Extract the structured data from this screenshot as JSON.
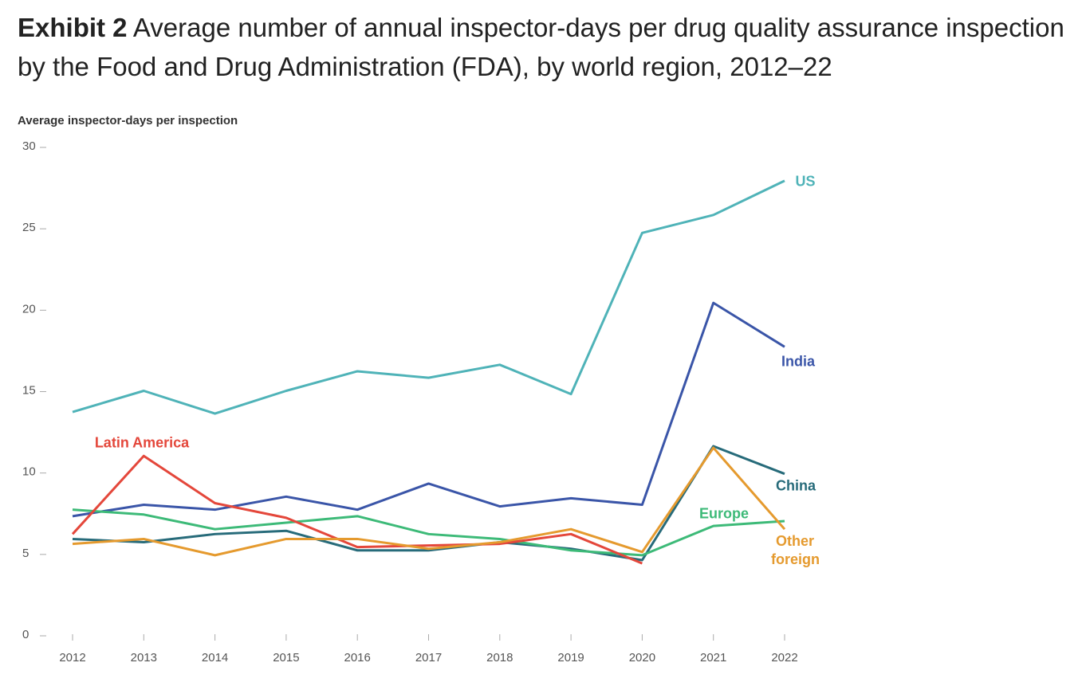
{
  "chart_data": {
    "type": "line",
    "exhibit": "Exhibit 2",
    "title": "Average number of annual inspector-days per drug quality assurance inspection by the Food and Drug Administration (FDA), by world region, 2012–22",
    "ylabel": "Average inspector-days per inspection",
    "x": [
      2012,
      2013,
      2014,
      2015,
      2016,
      2017,
      2018,
      2019,
      2020,
      2021,
      2022
    ],
    "xlim": [
      2012,
      2022
    ],
    "xticks": [
      2012,
      2013,
      2014,
      2015,
      2016,
      2017,
      2018,
      2019,
      2020,
      2021,
      2022
    ],
    "ylim": [
      0,
      30
    ],
    "yticks": [
      0,
      5,
      10,
      15,
      20,
      25,
      30
    ],
    "series": [
      {
        "name": "US",
        "color": "#4fb3b8",
        "values": [
          13.7,
          15.0,
          13.6,
          15.0,
          16.2,
          15.8,
          16.6,
          14.8,
          24.7,
          25.8,
          27.9
        ]
      },
      {
        "name": "India",
        "color": "#3a55a8",
        "values": [
          7.3,
          8.0,
          7.7,
          8.5,
          7.7,
          9.3,
          7.9,
          8.4,
          8.0,
          20.4,
          17.7
        ]
      },
      {
        "name": "China",
        "color": "#276b7a",
        "values": [
          5.9,
          5.7,
          6.2,
          6.4,
          5.2,
          5.2,
          5.7,
          5.3,
          4.6,
          11.6,
          9.9
        ]
      },
      {
        "name": "Europe",
        "color": "#3dba78",
        "values": [
          7.7,
          7.4,
          6.5,
          6.9,
          7.3,
          6.2,
          5.9,
          5.2,
          4.9,
          6.7,
          7.0
        ]
      },
      {
        "name": "Latin America",
        "color": "#e4473b",
        "values": [
          6.2,
          11.0,
          8.1,
          7.2,
          5.4,
          5.5,
          5.6,
          6.2,
          4.4,
          null,
          null
        ]
      },
      {
        "name": "Other foreign",
        "color": "#e59a2e",
        "values": [
          5.6,
          5.9,
          4.9,
          5.9,
          5.9,
          5.3,
          5.7,
          6.5,
          5.1,
          11.5,
          6.5
        ]
      }
    ]
  }
}
